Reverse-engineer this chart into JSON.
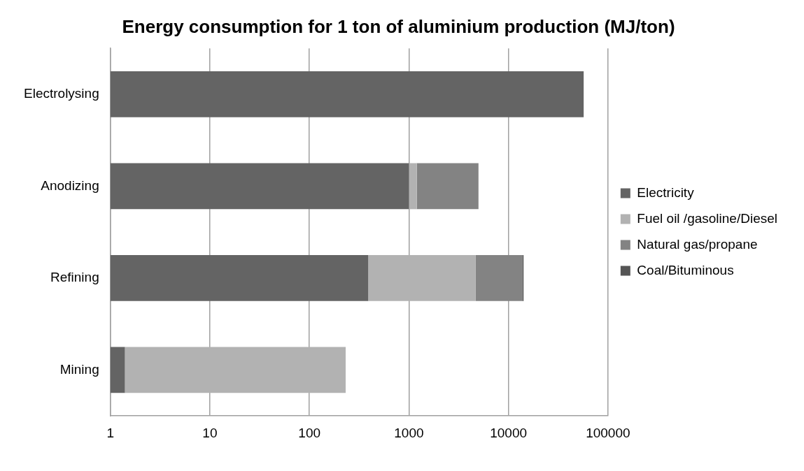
{
  "chart_data": {
    "type": "bar",
    "orientation": "horizontal",
    "stacked": true,
    "log": "x",
    "title": "Energy consumption for 1 ton of aluminium production (MJ/ton)",
    "categories": [
      "Electrolysing",
      "Anodizing",
      "Refining",
      "Mining"
    ],
    "series": [
      {
        "name": "Electricity",
        "color": "#646464",
        "values": [
          57000,
          1000,
          390,
          1.4
        ]
      },
      {
        "name": "Fuel oil /gasoline/Diesel",
        "color": "#b2b2b2",
        "values": [
          null,
          200,
          4300,
          230
        ]
      },
      {
        "name": "Natural gas/propane",
        "color": "#838383",
        "values": [
          null,
          3800,
          9200,
          null
        ]
      },
      {
        "name": "Coal/Bituminous",
        "color": "#555555",
        "values": [
          null,
          null,
          300,
          null
        ]
      }
    ],
    "xlim": [
      1,
      100000
    ],
    "xticks": [
      1,
      10,
      100,
      1000,
      10000,
      100000
    ],
    "grid": "x",
    "legend": "right"
  }
}
